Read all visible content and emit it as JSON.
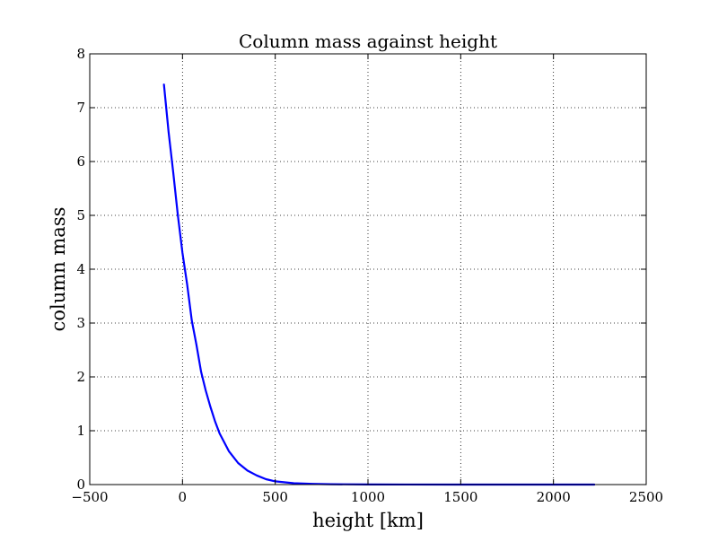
{
  "chart_data": {
    "type": "line",
    "title": "Column mass against height",
    "xlabel": "height [km]",
    "ylabel": "column mass",
    "xlim": [
      -500,
      2500
    ],
    "ylim": [
      0,
      8
    ],
    "xticks": [
      -500,
      0,
      500,
      1000,
      1500,
      2000,
      2500
    ],
    "xtick_labels": [
      "−500",
      "0",
      "500",
      "1000",
      "1500",
      "2000",
      "2500"
    ],
    "yticks": [
      0,
      1,
      2,
      3,
      4,
      5,
      6,
      7,
      8
    ],
    "ytick_labels": [
      "0",
      "1",
      "2",
      "3",
      "4",
      "5",
      "6",
      "7",
      "8"
    ],
    "grid": true,
    "series": [
      {
        "color": "#0000ff",
        "x": [
          -100,
          -75,
          -50,
          -25,
          0,
          25,
          50,
          75,
          100,
          125,
          150,
          175,
          200,
          250,
          300,
          350,
          400,
          450,
          500,
          600,
          700,
          800,
          1000,
          1200,
          1500,
          1800,
          2000,
          2220
        ],
        "y": [
          7.43,
          6.55,
          5.8,
          5.0,
          4.3,
          3.72,
          3.05,
          2.6,
          2.1,
          1.75,
          1.45,
          1.18,
          0.95,
          0.62,
          0.4,
          0.26,
          0.17,
          0.1,
          0.06,
          0.025,
          0.012,
          0.006,
          0.002,
          0.001,
          0.0,
          0.0,
          0.0,
          0.0
        ]
      }
    ]
  }
}
